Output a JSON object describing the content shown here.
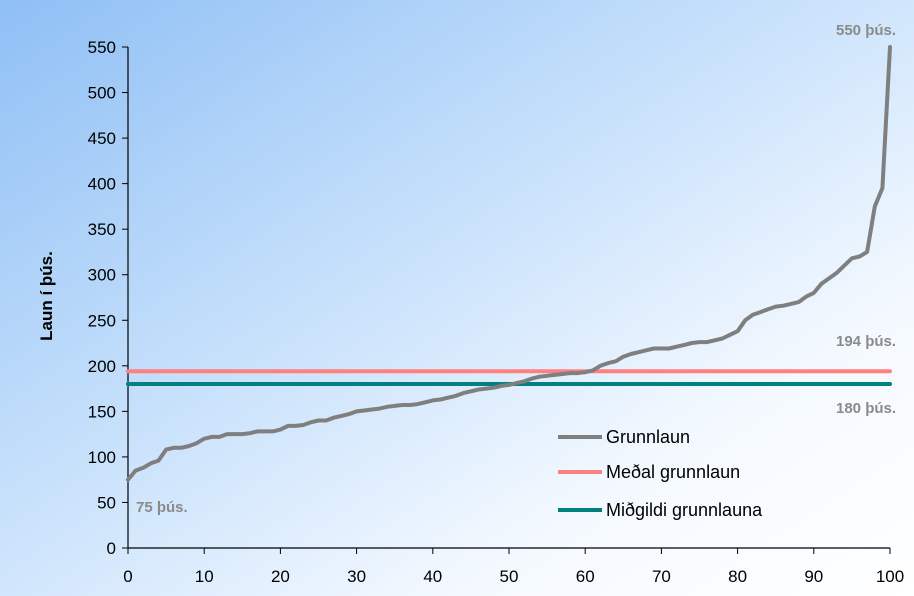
{
  "chart_data": {
    "type": "line",
    "ylabel": "Laun í þús.",
    "xlabel": "",
    "xlim": [
      0,
      100
    ],
    "ylim": [
      0,
      550
    ],
    "x_ticks": [
      0,
      10,
      20,
      30,
      40,
      50,
      60,
      70,
      80,
      90,
      100
    ],
    "y_ticks": [
      0,
      50,
      100,
      150,
      200,
      250,
      300,
      350,
      400,
      450,
      500,
      550
    ],
    "grid": false,
    "legend_position": "right",
    "background": "gradient blue (upper-left) to white (lower-right)",
    "series": [
      {
        "name": "Grunnlaun",
        "color": "#7f7f7f",
        "x": [
          0,
          1,
          2,
          3,
          4,
          5,
          6,
          7,
          8,
          9,
          10,
          11,
          12,
          13,
          14,
          15,
          16,
          17,
          18,
          19,
          20,
          21,
          22,
          23,
          24,
          25,
          26,
          27,
          28,
          29,
          30,
          31,
          32,
          33,
          34,
          35,
          36,
          37,
          38,
          39,
          40,
          41,
          42,
          43,
          44,
          45,
          46,
          47,
          48,
          49,
          50,
          51,
          52,
          53,
          54,
          55,
          56,
          57,
          58,
          59,
          60,
          61,
          62,
          63,
          64,
          65,
          66,
          67,
          68,
          69,
          70,
          71,
          72,
          73,
          74,
          75,
          76,
          77,
          78,
          79,
          80,
          81,
          82,
          83,
          84,
          85,
          86,
          87,
          88,
          89,
          90,
          91,
          92,
          93,
          94,
          95,
          96,
          97,
          98,
          99,
          100
        ],
        "y": [
          75,
          85,
          88,
          93,
          96,
          108,
          110,
          110,
          112,
          115,
          120,
          122,
          122,
          125,
          125,
          125,
          126,
          128,
          128,
          128,
          130,
          134,
          134,
          135,
          138,
          140,
          140,
          143,
          145,
          147,
          150,
          151,
          152,
          153,
          155,
          156,
          157,
          157,
          158,
          160,
          162,
          163,
          165,
          167,
          170,
          172,
          174,
          175,
          176,
          178,
          179,
          181,
          183,
          186,
          188,
          189,
          190,
          191,
          192,
          192,
          193,
          195,
          200,
          203,
          205,
          210,
          213,
          215,
          217,
          219,
          219,
          219,
          221,
          223,
          225,
          226,
          226,
          228,
          230,
          234,
          238,
          250,
          256,
          259,
          262,
          265,
          266,
          268,
          270,
          276,
          280,
          290,
          296,
          302,
          310,
          318,
          320,
          325,
          375,
          395,
          550
        ]
      },
      {
        "name": "Meðal grunnlaun",
        "color": "#ff8080",
        "x": [
          0,
          100
        ],
        "y": [
          194,
          194
        ]
      },
      {
        "name": "Miðgildi grunnlauna",
        "color": "#00807f",
        "x": [
          0,
          100
        ],
        "y": [
          180,
          180
        ]
      }
    ],
    "annotations": [
      {
        "text": "550 þús.",
        "x": 100,
        "y": 550,
        "color": "#8a8a8a"
      },
      {
        "text": "194 þús.",
        "x": 100,
        "y": 194,
        "color": "#8a8a8a"
      },
      {
        "text": "180 þús.",
        "x": 100,
        "y": 180,
        "color": "#8a8a8a"
      },
      {
        "text": "75 þús.",
        "x": 0,
        "y": 75,
        "color": "#8a8a8a"
      }
    ]
  }
}
